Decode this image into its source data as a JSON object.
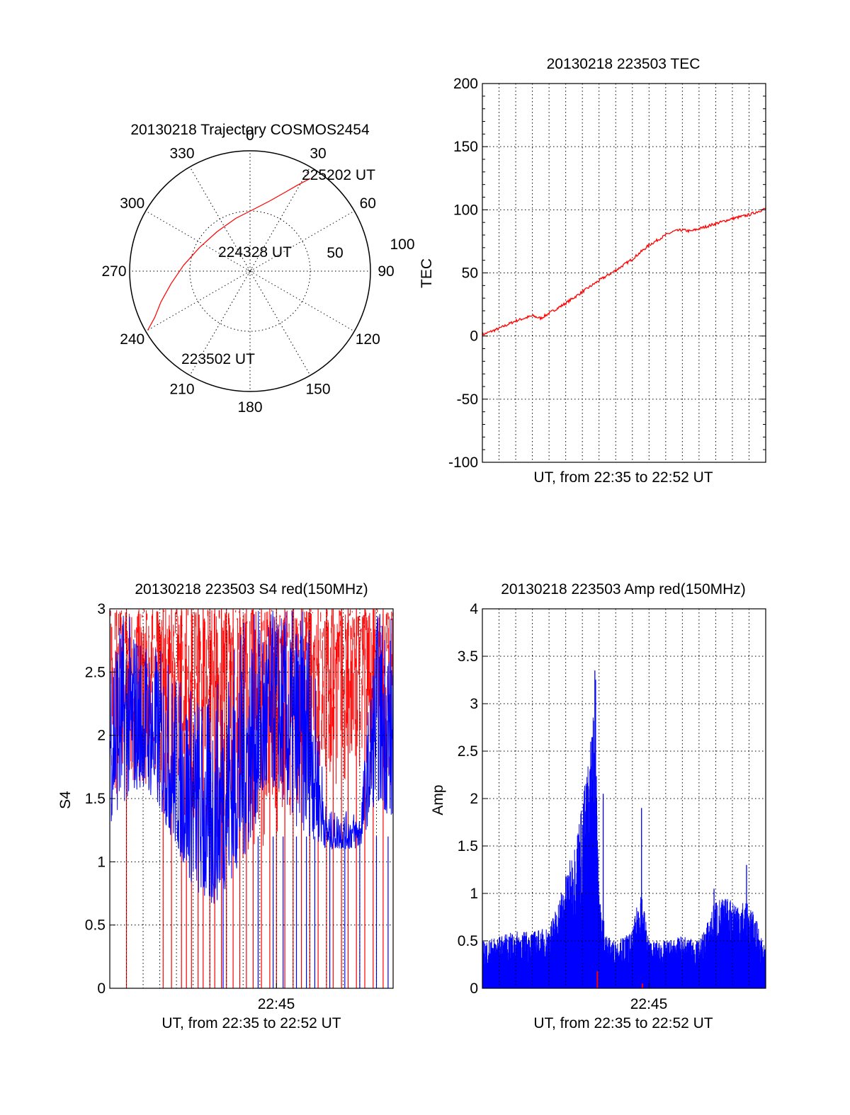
{
  "colors": {
    "red": "#ff0000",
    "blue": "#0000ff",
    "axis": "#000000",
    "background": "#ffffff"
  },
  "chart_data": [
    {
      "type": "scatter",
      "projection": "polar",
      "title": "20130218 Trajectory COSMOS2454",
      "azimuth_tick_labels": [
        "0",
        "30",
        "60",
        "90",
        "120",
        "150",
        "180",
        "210",
        "240",
        "270",
        "300",
        "330"
      ],
      "radial_tick_labels": [
        "50",
        "100"
      ],
      "series": [
        {
          "color": "#ff0000",
          "points": [
            {
              "azimuth": 33,
              "elevation_offset": 101
            },
            {
              "azimuth": 29,
              "elevation_offset": 90
            },
            {
              "azimuth": 24,
              "elevation_offset": 79
            },
            {
              "azimuth": 16,
              "elevation_offset": 67
            },
            {
              "azimuth": 4,
              "elevation_offset": 57
            },
            {
              "azimuth": 345,
              "elevation_offset": 50
            },
            {
              "azimuth": 320,
              "elevation_offset": 47
            },
            {
              "azimuth": 295,
              "elevation_offset": 51
            },
            {
              "azimuth": 275,
              "elevation_offset": 61
            },
            {
              "azimuth": 261,
              "elevation_offset": 73
            },
            {
              "azimuth": 251,
              "elevation_offset": 86
            },
            {
              "azimuth": 244,
              "elevation_offset": 97
            },
            {
              "azimuth": 240,
              "elevation_offset": 108
            }
          ]
        }
      ],
      "annotations": [
        "225202 UT",
        "224328 UT",
        "223502 UT"
      ]
    },
    {
      "type": "line",
      "title": "20130218 223503 TEC",
      "xlabel": "UT, from 22:35 to 22:52 UT",
      "ylabel": "TEC",
      "ylim": [
        -100,
        200
      ],
      "yticks": [
        "200",
        "150",
        "100",
        "50",
        "0",
        "-50",
        "-100"
      ],
      "grid": true,
      "x_unit": "minutes since 22:35",
      "xlim": [
        0,
        17
      ],
      "series": [
        {
          "color": "#ff0000",
          "x": [
            0,
            1,
            2,
            3,
            3.5,
            4,
            5,
            6,
            7,
            8,
            9,
            10,
            11,
            11.5,
            12,
            12.5,
            13,
            14,
            15,
            16,
            17
          ],
          "y": [
            1,
            6,
            12,
            16,
            14,
            18,
            26,
            35,
            44,
            52,
            61,
            72,
            80,
            83,
            84,
            83,
            85,
            89,
            93,
            96,
            101
          ]
        }
      ]
    },
    {
      "type": "line",
      "title": "20130218 223503 S4 red(150MHz)",
      "xlabel": "UT, from 22:35 to 22:52 UT",
      "ylabel": "S4",
      "ylim": [
        0,
        3
      ],
      "yticks": [
        "3",
        "2.5",
        "2",
        "1.5",
        "1",
        "0.5",
        "0"
      ],
      "xtick_labels": [
        "22:45"
      ],
      "grid": true,
      "series": [
        {
          "color": "#ff0000",
          "envelope": [
            [
              0,
              1.5,
              3
            ],
            [
              2,
              1.6,
              3
            ],
            [
              4,
              1.4,
              3
            ],
            [
              6,
              1.2,
              3
            ],
            [
              8,
              1.0,
              3
            ],
            [
              10,
              1.2,
              3
            ],
            [
              12,
              1.6,
              3
            ],
            [
              14,
              1.6,
              3
            ],
            [
              17,
              1.6,
              3
            ]
          ]
        },
        {
          "color": "#0000ff",
          "envelope": [
            [
              0,
              1.3,
              3
            ],
            [
              1,
              1.5,
              3
            ],
            [
              2,
              1.6,
              2.8
            ],
            [
              3,
              1.4,
              2.7
            ],
            [
              4,
              1.1,
              2.5
            ],
            [
              5,
              0.8,
              2.4
            ],
            [
              6,
              0.6,
              2.3
            ],
            [
              7,
              0.8,
              2.6
            ],
            [
              8,
              1.0,
              2.9
            ],
            [
              9,
              1.4,
              3
            ],
            [
              10,
              1.6,
              3
            ],
            [
              11,
              1.3,
              3
            ],
            [
              12,
              1.2,
              3
            ],
            [
              13,
              1.1,
              1.4
            ],
            [
              14,
              1.1,
              1.4
            ],
            [
              15,
              1.1,
              1.4
            ],
            [
              16,
              1.5,
              3
            ],
            [
              17,
              1.3,
              3
            ]
          ]
        }
      ],
      "red_spikes_to_zero_minutes": [
        1.0,
        3.2,
        3.7,
        4.3,
        4.6,
        4.9,
        5.3,
        5.6,
        6.0,
        6.3,
        6.7,
        7.0,
        7.4,
        7.8,
        8.2,
        8.6,
        9.1,
        9.6,
        10.0,
        10.5,
        11.0,
        11.5,
        12.0,
        12.5,
        13.0,
        13.4,
        13.9,
        14.3,
        14.8,
        15.3,
        15.8,
        16.4
      ],
      "blue_spikes_to_zero_minutes": [
        6.8,
        8.9,
        9.8,
        10.4,
        11.2,
        11.8,
        12.3,
        13.2,
        14.1,
        15.0,
        16.0,
        16.7
      ]
    },
    {
      "type": "line",
      "title": "20130218 223503 Amp red(150MHz)",
      "xlabel": "UT, from 22:35 to 22:52 UT",
      "ylabel": "Amp",
      "ylim": [
        0,
        4
      ],
      "yticks": [
        "4",
        "3.5",
        "3",
        "2.5",
        "2",
        "1.5",
        "1",
        "0.5",
        "0"
      ],
      "xtick_labels": [
        "22:45"
      ],
      "grid": true,
      "series": [
        {
          "color": "#0000ff",
          "envelope": [
            [
              0,
              0.5
            ],
            [
              1,
              0.55
            ],
            [
              2,
              0.6
            ],
            [
              3,
              0.6
            ],
            [
              4,
              0.65
            ],
            [
              4.5,
              0.9
            ],
            [
              5,
              1.2
            ],
            [
              5.5,
              1.5
            ],
            [
              6,
              2.0
            ],
            [
              6.5,
              2.6
            ],
            [
              6.8,
              3.3
            ],
            [
              7.0,
              1.0
            ],
            [
              7.5,
              0.55
            ],
            [
              8,
              0.5
            ],
            [
              9,
              0.6
            ],
            [
              9.5,
              1.1
            ],
            [
              10,
              0.5
            ],
            [
              11,
              0.5
            ],
            [
              12,
              0.55
            ],
            [
              13,
              0.5
            ],
            [
              13.5,
              0.7
            ],
            [
              14,
              0.95
            ],
            [
              15,
              0.95
            ],
            [
              16,
              0.9
            ],
            [
              16.5,
              0.7
            ],
            [
              17,
              0.4
            ]
          ]
        },
        {
          "color": "#ff0000",
          "x": [
            6.9,
            9.6
          ],
          "y": [
            0.18,
            0.05
          ]
        }
      ]
    }
  ]
}
